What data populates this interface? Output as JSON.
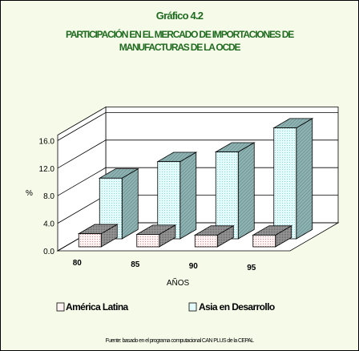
{
  "chart_data": {
    "type": "bar",
    "title_line1": "PARTICIPACIÓN EN EL MERCADO DE IMPORTACIONES DE",
    "title_line2": "MANUFACTURAS DE LA OCDE",
    "subtitle": "Gráfico 4.2",
    "categories": [
      "80",
      "85",
      "90",
      "95"
    ],
    "series": [
      {
        "name": "América Latina",
        "values": [
          1.9,
          1.8,
          1.7,
          1.7
        ]
      },
      {
        "name": "Asia en Desarrollo",
        "values": [
          8.8,
          11.2,
          12.6,
          16.1
        ]
      }
    ],
    "xlabel": "AÑOS",
    "ylabel": "%",
    "yticks": [
      "0.0",
      "4.0",
      "8.0",
      "12.0",
      "16.0"
    ],
    "ylim": [
      0,
      16
    ],
    "grid": true,
    "legend_position": "bottom",
    "source": "Fuente: basado en el programa computacional CAN PLUS de la CEPAL",
    "colors": {
      "america_latina": "#fff3f3",
      "asia": "#e4fbfb",
      "asia_side": "#5f8787",
      "al_side": "#6b6b6b",
      "text_green": "#1f6b1f",
      "background": "#f6fbe9"
    }
  }
}
